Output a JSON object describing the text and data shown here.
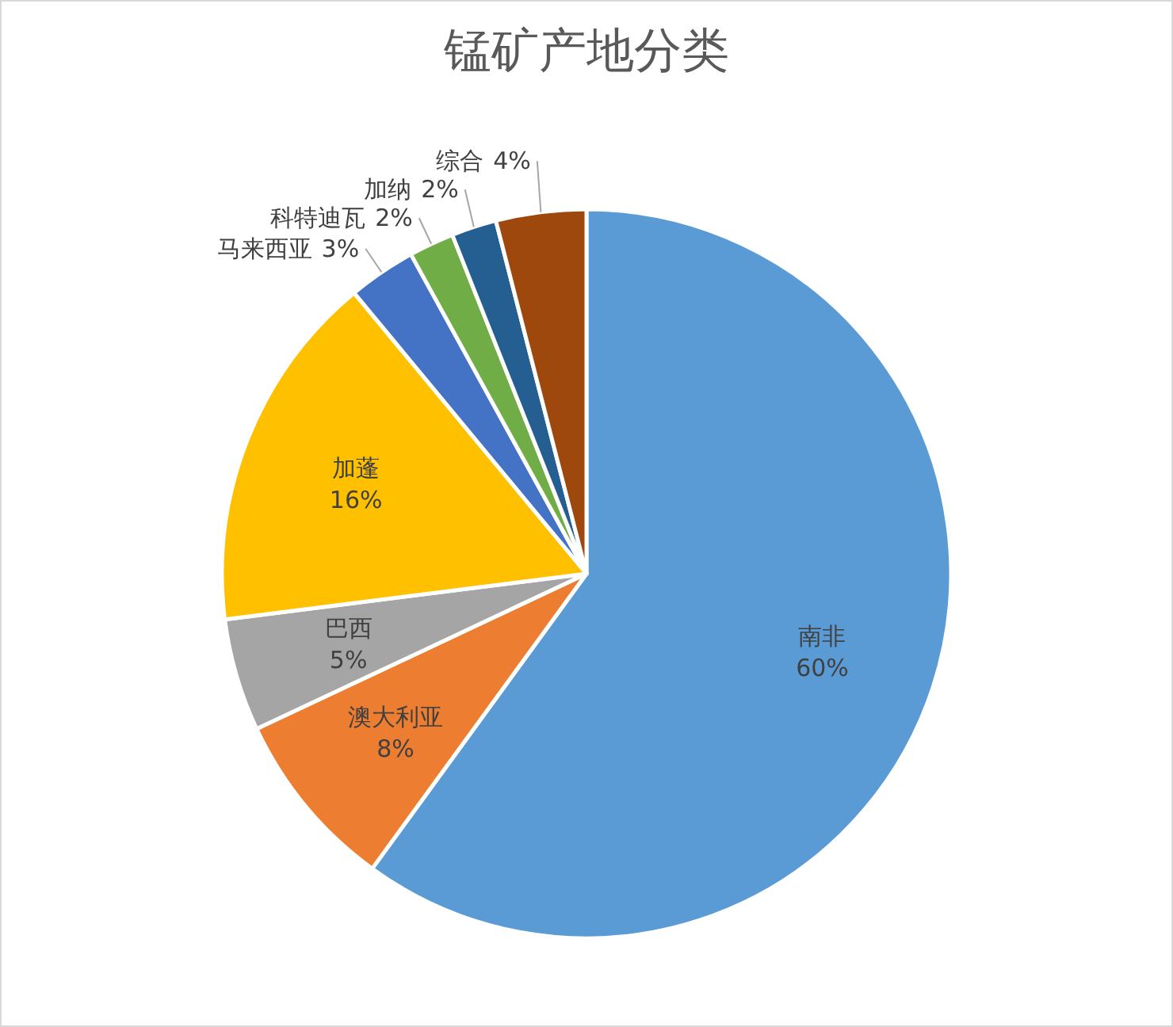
{
  "chart_data": {
    "type": "pie",
    "title": "锰矿产地分类",
    "categories": [
      "南非",
      "澳大利亚",
      "巴西",
      "加蓬",
      "马来西亚",
      "科特迪瓦",
      "加纳",
      "综合"
    ],
    "values": [
      60,
      8,
      5,
      16,
      3,
      2,
      2,
      4
    ],
    "colors": [
      "#5b9bd5",
      "#ed7d31",
      "#a5a5a5",
      "#ffc000",
      "#4472c4",
      "#70ad47",
      "#255e91",
      "#9e480e"
    ],
    "value_labels": [
      "60%",
      "8%",
      "5%",
      "16%",
      "3%",
      "2%",
      "2%",
      "4%"
    ]
  }
}
